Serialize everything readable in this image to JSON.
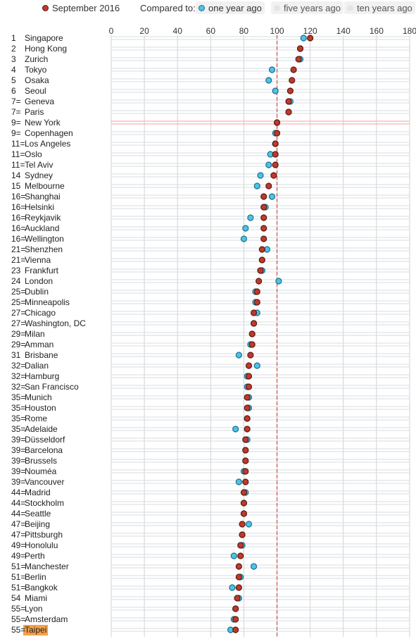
{
  "legend": {
    "primary": {
      "label": "September 2016",
      "color": "#c0392b"
    },
    "compared_to": "Compared to:",
    "options": [
      {
        "label": "one year ago",
        "color": "#4dc3e8",
        "active": true
      },
      {
        "label": "five years ago",
        "color": "#e5e5e5",
        "active": false
      },
      {
        "label": "ten years ago",
        "color": "#e5e5e5",
        "active": false
      }
    ]
  },
  "highlight_color": "#f5a04b",
  "chart_data": {
    "type": "scatter",
    "xlim": [
      0,
      180
    ],
    "xticks": [
      0,
      20,
      40,
      60,
      80,
      100,
      120,
      140,
      160,
      180
    ],
    "reference_value": 100,
    "reference_city": "New York",
    "highlighted_city": "Taipei",
    "series": [
      {
        "name": "September 2016",
        "color": "#c0392b"
      },
      {
        "name": "one year ago",
        "color": "#4dc3e8"
      }
    ],
    "rows": [
      {
        "rank": "1",
        "city": "Singapore",
        "current": 120,
        "prior": 116
      },
      {
        "rank": "2",
        "city": "Hong Kong",
        "current": 114,
        "prior": 114
      },
      {
        "rank": "3",
        "city": "Zurich",
        "current": 113,
        "prior": 114
      },
      {
        "rank": "4",
        "city": "Tokyo",
        "current": 110,
        "prior": 97
      },
      {
        "rank": "5",
        "city": "Osaka",
        "current": 109,
        "prior": 95
      },
      {
        "rank": "6",
        "city": "Seoul",
        "current": 108,
        "prior": 99
      },
      {
        "rank": "7=",
        "city": "Geneva",
        "current": 107,
        "prior": 108
      },
      {
        "rank": "7=",
        "city": "Paris",
        "current": 107,
        "prior": 107
      },
      {
        "rank": "9=",
        "city": "New York",
        "current": 100,
        "prior": 100
      },
      {
        "rank": "9=",
        "city": "Copenhagen",
        "current": 100,
        "prior": 99
      },
      {
        "rank": "11=",
        "city": "Los Angeles",
        "current": 99,
        "prior": 99
      },
      {
        "rank": "11=",
        "city": "Oslo",
        "current": 99,
        "prior": 96
      },
      {
        "rank": "11=",
        "city": "Tel Aviv",
        "current": 99,
        "prior": 95
      },
      {
        "rank": "14",
        "city": "Sydney",
        "current": 98,
        "prior": 90
      },
      {
        "rank": "15",
        "city": "Melbourne",
        "current": 95,
        "prior": 88
      },
      {
        "rank": "16=",
        "city": "Shanghai",
        "current": 92,
        "prior": 97
      },
      {
        "rank": "16=",
        "city": "Helsinki",
        "current": 92,
        "prior": 93
      },
      {
        "rank": "16=",
        "city": "Reykjavik",
        "current": 92,
        "prior": 84
      },
      {
        "rank": "16=",
        "city": "Auckland",
        "current": 92,
        "prior": 81
      },
      {
        "rank": "16=",
        "city": "Wellington",
        "current": 92,
        "prior": 80
      },
      {
        "rank": "21=",
        "city": "Shenzhen",
        "current": 91,
        "prior": 94
      },
      {
        "rank": "21=",
        "city": "Vienna",
        "current": 91,
        "prior": 91
      },
      {
        "rank": "23",
        "city": "Frankfurt",
        "current": 90,
        "prior": 91
      },
      {
        "rank": "24",
        "city": "London",
        "current": 89,
        "prior": 101
      },
      {
        "rank": "25=",
        "city": "Dublin",
        "current": 88,
        "prior": 87
      },
      {
        "rank": "25=",
        "city": "Minneapolis",
        "current": 88,
        "prior": 87
      },
      {
        "rank": "27=",
        "city": "Chicago",
        "current": 86,
        "prior": 88
      },
      {
        "rank": "27=",
        "city": "Washington, DC",
        "current": 86,
        "prior": 86
      },
      {
        "rank": "29=",
        "city": "Milan",
        "current": 85,
        "prior": 85
      },
      {
        "rank": "29=",
        "city": "Amman",
        "current": 85,
        "prior": 84
      },
      {
        "rank": "31",
        "city": "Brisbane",
        "current": 84,
        "prior": 77
      },
      {
        "rank": "32=",
        "city": "Dalian",
        "current": 83,
        "prior": 88
      },
      {
        "rank": "32=",
        "city": "Hamburg",
        "current": 83,
        "prior": 82
      },
      {
        "rank": "32=",
        "city": "San Francisco",
        "current": 83,
        "prior": 82
      },
      {
        "rank": "35=",
        "city": "Munich",
        "current": 82,
        "prior": 83
      },
      {
        "rank": "35=",
        "city": "Houston",
        "current": 82,
        "prior": 83
      },
      {
        "rank": "35=",
        "city": "Rome",
        "current": 82,
        "prior": 82
      },
      {
        "rank": "35=",
        "city": "Adelaide",
        "current": 82,
        "prior": 75
      },
      {
        "rank": "39=",
        "city": "Düsseldorf",
        "current": 81,
        "prior": 82
      },
      {
        "rank": "39=",
        "city": "Barcelona",
        "current": 81,
        "prior": 81
      },
      {
        "rank": "39=",
        "city": "Brussels",
        "current": 81,
        "prior": 81
      },
      {
        "rank": "39=",
        "city": "Nouméa",
        "current": 81,
        "prior": 80
      },
      {
        "rank": "39=",
        "city": "Vancouver",
        "current": 81,
        "prior": 77
      },
      {
        "rank": "44=",
        "city": "Madrid",
        "current": 80,
        "prior": 81
      },
      {
        "rank": "44=",
        "city": "Stockholm",
        "current": 80,
        "prior": 80
      },
      {
        "rank": "44=",
        "city": "Seattle",
        "current": 80,
        "prior": 80
      },
      {
        "rank": "47=",
        "city": "Beijing",
        "current": 79,
        "prior": 83
      },
      {
        "rank": "47=",
        "city": "Pittsburgh",
        "current": 79,
        "prior": 79
      },
      {
        "rank": "49=",
        "city": "Honolulu",
        "current": 78,
        "prior": 79
      },
      {
        "rank": "49=",
        "city": "Perth",
        "current": 78,
        "prior": 74
      },
      {
        "rank": "51=",
        "city": "Manchester",
        "current": 77,
        "prior": 86
      },
      {
        "rank": "51=",
        "city": "Berlin",
        "current": 77,
        "prior": 78
      },
      {
        "rank": "51=",
        "city": "Bangkok",
        "current": 77,
        "prior": 73
      },
      {
        "rank": "54",
        "city": "Miami",
        "current": 76,
        "prior": 77
      },
      {
        "rank": "55=",
        "city": "Lyon",
        "current": 75,
        "prior": 75
      },
      {
        "rank": "55=",
        "city": "Amsterdam",
        "current": 75,
        "prior": 74
      },
      {
        "rank": "55=",
        "city": "Taipei",
        "current": 75,
        "prior": 72
      }
    ]
  }
}
